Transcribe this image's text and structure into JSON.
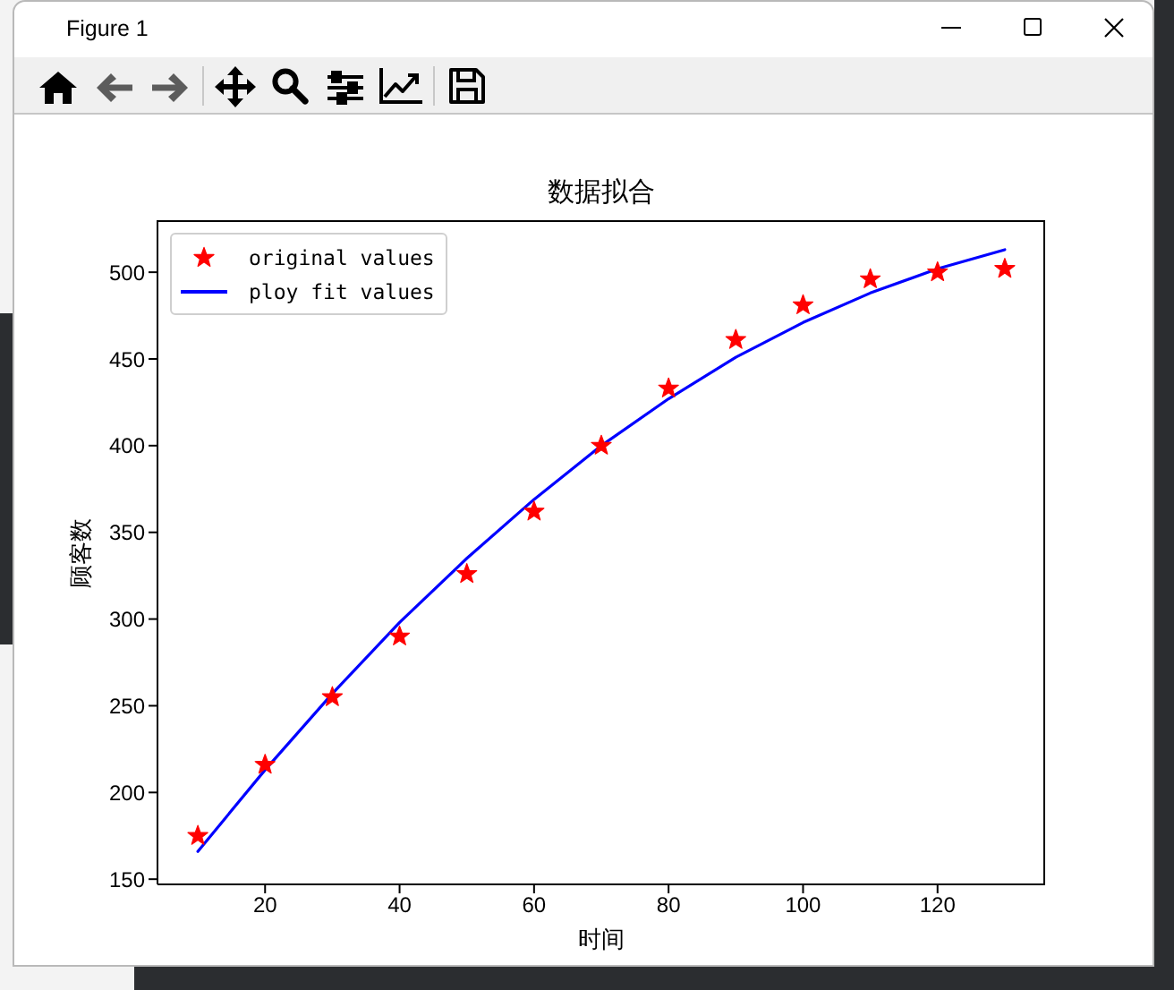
{
  "chart_data": {
    "type": "scatter",
    "title": "数据拟合",
    "xlabel": "时间",
    "ylabel": "顾客数",
    "annotations": [
      "Figure 1"
    ],
    "series": [
      {
        "name": "original values",
        "color": "#ff0000",
        "marker": "star",
        "x": [
          10,
          20,
          30,
          40,
          50,
          60,
          70,
          80,
          90,
          100,
          110,
          120,
          130
        ],
        "values": [
          175,
          216,
          255,
          290,
          326,
          362,
          400,
          433,
          461,
          481,
          496,
          500,
          502
        ]
      },
      {
        "name": "ploy fit values",
        "type": "line",
        "color": "#0000ff",
        "marker": "none",
        "line_style": "solid",
        "x": [
          10,
          20,
          30,
          40,
          50,
          60,
          70,
          80,
          90,
          100,
          110,
          120,
          130
        ],
        "values": [
          166,
          213,
          257,
          298,
          335,
          369,
          400,
          427,
          451,
          471,
          488,
          502,
          513
        ]
      }
    ],
    "xlim": [
      4,
      136
    ],
    "xticks": [
      20,
      40,
      60,
      80,
      100,
      120
    ],
    "ylim": [
      147,
      530
    ],
    "yticks": [
      150,
      200,
      250,
      300,
      350,
      400,
      450,
      500
    ],
    "legend": "top left"
  }
}
